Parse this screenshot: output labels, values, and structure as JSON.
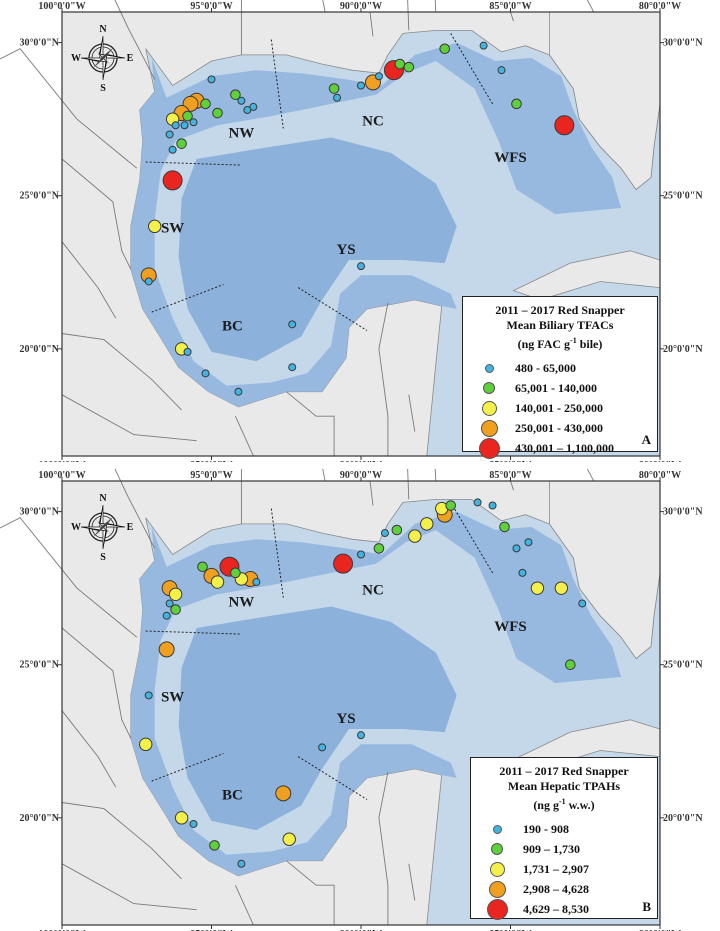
{
  "colors": {
    "land": "#e9e9e9",
    "shelf": "#c4d8ea",
    "gulf": "#97b9df",
    "deep": "#7ea8d6",
    "borders": "#7a7a7a",
    "bin1": "#43b3e0",
    "bin2": "#5ed13a",
    "bin3": "#f3f04a",
    "bin4": "#f0a020",
    "bin5": "#e8251f"
  },
  "axes": {
    "x_labels": [
      "100°0'0\"W",
      "95°0'0\"W",
      "90°0'0\"W",
      "85°0'0\"W",
      "80°0'0\"W"
    ],
    "y_labels": [
      "30°0'0\"N",
      "25°0'0\"N",
      "20°0'0\"N"
    ]
  },
  "compass": {
    "n": "N",
    "s": "S",
    "e": "E",
    "w": "W",
    "icon": "compass-rose-icon"
  },
  "regions": [
    "NW",
    "NC",
    "WFS",
    "SW",
    "YS",
    "BC"
  ],
  "panels": [
    {
      "letter": "A",
      "legend_title_1": "2011 – 2017 Red Snapper",
      "legend_title_2": "Mean Biliary TFACs",
      "legend_unit_pre": "(ng FAC g",
      "legend_unit_sup": "-1",
      "legend_unit_post": " bile)",
      "bins": [
        "480 - 65,000",
        "65,001 - 140,000",
        "140,001 - 250,000",
        "250,001 - 430,000",
        "430,001 – 1,100,000"
      ],
      "stations": [
        {
          "lon": -95.0,
          "lat": 28.8,
          "bin": 1
        },
        {
          "lon": -95.5,
          "lat": 28.1,
          "bin": 4
        },
        {
          "lon": -95.2,
          "lat": 28.0,
          "bin": 2
        },
        {
          "lon": -95.7,
          "lat": 28.0,
          "bin": 4
        },
        {
          "lon": -96.0,
          "lat": 27.7,
          "bin": 4
        },
        {
          "lon": -96.3,
          "lat": 27.5,
          "bin": 3
        },
        {
          "lon": -95.8,
          "lat": 27.6,
          "bin": 2
        },
        {
          "lon": -95.6,
          "lat": 27.4,
          "bin": 1
        },
        {
          "lon": -95.9,
          "lat": 27.3,
          "bin": 1
        },
        {
          "lon": -96.2,
          "lat": 27.3,
          "bin": 1
        },
        {
          "lon": -96.4,
          "lat": 27.0,
          "bin": 1
        },
        {
          "lon": -96.0,
          "lat": 26.7,
          "bin": 2
        },
        {
          "lon": -96.3,
          "lat": 26.5,
          "bin": 1
        },
        {
          "lon": -94.8,
          "lat": 27.7,
          "bin": 2
        },
        {
          "lon": -94.2,
          "lat": 28.3,
          "bin": 2
        },
        {
          "lon": -94.0,
          "lat": 28.1,
          "bin": 1
        },
        {
          "lon": -93.8,
          "lat": 27.8,
          "bin": 1
        },
        {
          "lon": -93.6,
          "lat": 27.9,
          "bin": 1
        },
        {
          "lon": -90.9,
          "lat": 28.5,
          "bin": 2
        },
        {
          "lon": -90.8,
          "lat": 28.2,
          "bin": 1
        },
        {
          "lon": -90.0,
          "lat": 28.6,
          "bin": 1
        },
        {
          "lon": -89.6,
          "lat": 28.7,
          "bin": 4
        },
        {
          "lon": -89.4,
          "lat": 28.9,
          "bin": 1
        },
        {
          "lon": -88.9,
          "lat": 29.1,
          "bin": 5
        },
        {
          "lon": -88.7,
          "lat": 29.3,
          "bin": 2
        },
        {
          "lon": -88.4,
          "lat": 29.2,
          "bin": 2
        },
        {
          "lon": -87.2,
          "lat": 29.8,
          "bin": 2
        },
        {
          "lon": -85.9,
          "lat": 29.9,
          "bin": 1
        },
        {
          "lon": -85.3,
          "lat": 29.1,
          "bin": 1
        },
        {
          "lon": -84.8,
          "lat": 28.0,
          "bin": 2
        },
        {
          "lon": -83.2,
          "lat": 27.3,
          "bin": 5
        },
        {
          "lon": -96.3,
          "lat": 25.5,
          "bin": 5
        },
        {
          "lon": -96.9,
          "lat": 24.0,
          "bin": 3
        },
        {
          "lon": -97.1,
          "lat": 22.4,
          "bin": 4
        },
        {
          "lon": -97.1,
          "lat": 22.2,
          "bin": 1
        },
        {
          "lon": -96.0,
          "lat": 20.0,
          "bin": 3
        },
        {
          "lon": -95.8,
          "lat": 19.9,
          "bin": 1
        },
        {
          "lon": -95.2,
          "lat": 19.2,
          "bin": 1
        },
        {
          "lon": -94.1,
          "lat": 18.6,
          "bin": 1
        },
        {
          "lon": -92.3,
          "lat": 20.8,
          "bin": 1
        },
        {
          "lon": -92.3,
          "lat": 19.4,
          "bin": 1
        },
        {
          "lon": -90.0,
          "lat": 22.7,
          "bin": 1
        }
      ]
    },
    {
      "letter": "B",
      "legend_title_1": "2011 – 2017 Red Snapper",
      "legend_title_2": "Mean Hepatic TPAHs",
      "legend_unit_pre": "(ng g",
      "legend_unit_sup": "-1",
      "legend_unit_post": " w.w.)",
      "bins": [
        "190 - 908",
        "909 – 1,730",
        "1,731 – 2,907",
        "2,908 – 4,628",
        "4,629 – 8,530"
      ],
      "stations": [
        {
          "lon": -96.4,
          "lat": 27.5,
          "bin": 4
        },
        {
          "lon": -96.2,
          "lat": 27.3,
          "bin": 3
        },
        {
          "lon": -96.4,
          "lat": 27.0,
          "bin": 1
        },
        {
          "lon": -96.2,
          "lat": 26.8,
          "bin": 2
        },
        {
          "lon": -96.5,
          "lat": 26.6,
          "bin": 1
        },
        {
          "lon": -95.3,
          "lat": 28.2,
          "bin": 2
        },
        {
          "lon": -95.0,
          "lat": 27.9,
          "bin": 4
        },
        {
          "lon": -94.8,
          "lat": 27.7,
          "bin": 3
        },
        {
          "lon": -94.4,
          "lat": 28.2,
          "bin": 5
        },
        {
          "lon": -94.2,
          "lat": 28.0,
          "bin": 2
        },
        {
          "lon": -94.0,
          "lat": 27.8,
          "bin": 3
        },
        {
          "lon": -93.7,
          "lat": 27.8,
          "bin": 4
        },
        {
          "lon": -93.5,
          "lat": 27.7,
          "bin": 1
        },
        {
          "lon": -90.6,
          "lat": 28.3,
          "bin": 5
        },
        {
          "lon": -90.0,
          "lat": 28.6,
          "bin": 1
        },
        {
          "lon": -89.4,
          "lat": 28.8,
          "bin": 2
        },
        {
          "lon": -89.2,
          "lat": 29.3,
          "bin": 1
        },
        {
          "lon": -88.8,
          "lat": 29.4,
          "bin": 2
        },
        {
          "lon": -88.2,
          "lat": 29.2,
          "bin": 3
        },
        {
          "lon": -87.8,
          "lat": 29.6,
          "bin": 3
        },
        {
          "lon": -87.3,
          "lat": 30.1,
          "bin": 3
        },
        {
          "lon": -87.2,
          "lat": 29.9,
          "bin": 4
        },
        {
          "lon": -87.0,
          "lat": 30.2,
          "bin": 2
        },
        {
          "lon": -86.1,
          "lat": 30.3,
          "bin": 1
        },
        {
          "lon": -85.6,
          "lat": 30.2,
          "bin": 1
        },
        {
          "lon": -85.2,
          "lat": 29.5,
          "bin": 2
        },
        {
          "lon": -84.8,
          "lat": 28.8,
          "bin": 1
        },
        {
          "lon": -84.4,
          "lat": 29.0,
          "bin": 1
        },
        {
          "lon": -84.6,
          "lat": 28.0,
          "bin": 1
        },
        {
          "lon": -84.1,
          "lat": 27.5,
          "bin": 3
        },
        {
          "lon": -83.3,
          "lat": 27.5,
          "bin": 3
        },
        {
          "lon": -83.0,
          "lat": 25.0,
          "bin": 2
        },
        {
          "lon": -96.5,
          "lat": 25.5,
          "bin": 4
        },
        {
          "lon": -97.1,
          "lat": 24.0,
          "bin": 1
        },
        {
          "lon": -97.2,
          "lat": 22.4,
          "bin": 3
        },
        {
          "lon": -96.0,
          "lat": 20.0,
          "bin": 3
        },
        {
          "lon": -95.6,
          "lat": 19.8,
          "bin": 1
        },
        {
          "lon": -94.9,
          "lat": 19.1,
          "bin": 2
        },
        {
          "lon": -94.0,
          "lat": 18.5,
          "bin": 1
        },
        {
          "lon": -92.6,
          "lat": 20.8,
          "bin": 4
        },
        {
          "lon": -92.4,
          "lat": 19.3,
          "bin": 3
        },
        {
          "lon": -91.3,
          "lat": 22.3,
          "bin": 1
        },
        {
          "lon": -90.0,
          "lat": 22.7,
          "bin": 1
        },
        {
          "lon": -82.6,
          "lat": 27.0,
          "bin": 1
        }
      ]
    }
  ]
}
